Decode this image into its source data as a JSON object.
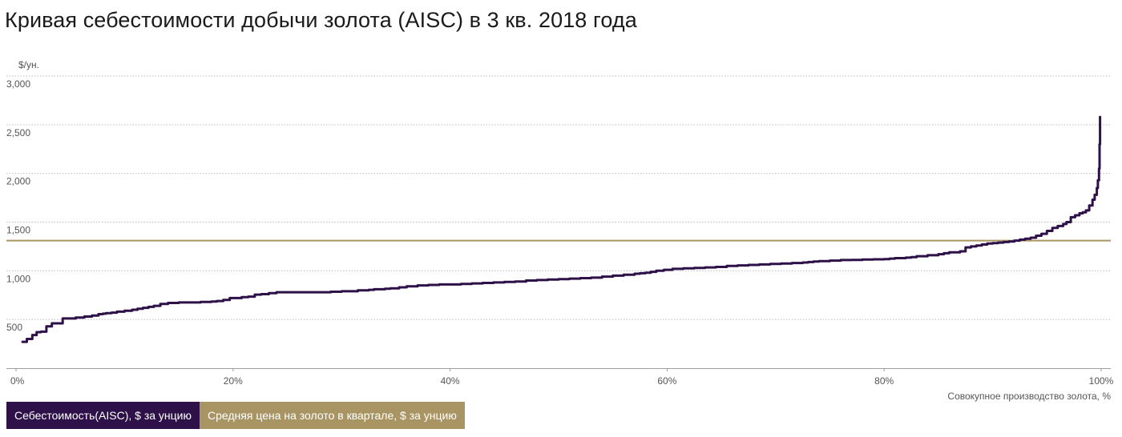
{
  "title": "Кривая себестоимости добычи золота (AISC) в 3 кв. 2018 года",
  "colors": {
    "cost": "#2d1148",
    "price": "#a99463",
    "grid": "#bdbdbd"
  },
  "legend": [
    {
      "label": "Себестоимость(AISC), $ за унцию",
      "color": "#2d1148"
    },
    {
      "label": "Средняя цена на золото в квартале, $ за унцию",
      "color": "#a99463"
    }
  ],
  "chart_data": {
    "type": "line",
    "ylabel": "$/ун.",
    "xlabel": "Совокупное производство золота, %",
    "xlim": [
      0,
      100
    ],
    "ylim": [
      0,
      3000
    ],
    "yticks": [
      500,
      1000,
      1500,
      2000,
      2500,
      3000
    ],
    "ytick_labels": [
      "500",
      "1,000",
      "1,500",
      "2,000",
      "2,500",
      "3,000"
    ],
    "xticks": [
      0,
      20,
      40,
      60,
      80,
      100
    ],
    "xtick_labels": [
      "0%",
      "20%",
      "40%",
      "60%",
      "80%",
      "100%"
    ],
    "grid": true,
    "series": [
      {
        "name": "Себестоимость(AISC), $ за унцию",
        "x": [
          0.6,
          1.0,
          1.5,
          1.9,
          2.3,
          2.8,
          3.3,
          4.3,
          5.5,
          6.3,
          7.0,
          7.6,
          8.0,
          8.3,
          8.8,
          9.3,
          10.0,
          10.7,
          11.2,
          11.7,
          12.2,
          12.7,
          13.3,
          14.0,
          15.0,
          16.0,
          17.0,
          18.0,
          18.5,
          19.1,
          19.7,
          20.3,
          20.8,
          21.4,
          22.0,
          22.6,
          23.3,
          24.0,
          24.6,
          25.2,
          26.0,
          28.0,
          29.0,
          30.0,
          31.5,
          32.5,
          33.0,
          34.0,
          34.5,
          35.3,
          36.0,
          37.0,
          38.0,
          39.0,
          40.0,
          41.0,
          42.0,
          43.0,
          44.0,
          45.0,
          46.0,
          47.0,
          48.0,
          49.0,
          50.0,
          51.0,
          52.0,
          53.0,
          54.0,
          55.0,
          56.0,
          57.0,
          57.5,
          58.0,
          58.5,
          59.0,
          59.7,
          60.5,
          61.5,
          62.5,
          63.5,
          64.5,
          65.5,
          66.5,
          67.5,
          68.5,
          69.5,
          70.5,
          71.5,
          72.5,
          73.0,
          73.5,
          74.0,
          75.0,
          76.0,
          77.0,
          78.0,
          79.0,
          80.0,
          80.5,
          81.0,
          82.0,
          82.5,
          83.0,
          84.0,
          85.0,
          85.5,
          86.0,
          86.5,
          87.0,
          87.5,
          88.0,
          88.5,
          89.0,
          89.5,
          90.0,
          90.5,
          91.0,
          91.5,
          92.0,
          92.5,
          93.0,
          93.5,
          94.0,
          94.5,
          95.0,
          95.5,
          96.0,
          96.5,
          96.8,
          97.2,
          97.6,
          98.0,
          98.3,
          98.6,
          98.9,
          99.2,
          99.4,
          99.6,
          99.7,
          99.8,
          99.85,
          99.9
        ],
        "y": [
          270,
          300,
          340,
          370,
          375,
          430,
          460,
          510,
          520,
          530,
          540,
          555,
          560,
          565,
          570,
          580,
          590,
          600,
          610,
          620,
          630,
          640,
          660,
          670,
          675,
          675,
          680,
          685,
          690,
          700,
          720,
          720,
          730,
          735,
          755,
          760,
          770,
          780,
          780,
          780,
          780,
          780,
          785,
          790,
          800,
          805,
          810,
          815,
          820,
          830,
          840,
          850,
          855,
          860,
          860,
          865,
          870,
          875,
          880,
          885,
          890,
          900,
          905,
          910,
          915,
          920,
          925,
          930,
          940,
          950,
          960,
          970,
          975,
          980,
          990,
          1000,
          1010,
          1020,
          1025,
          1030,
          1035,
          1040,
          1050,
          1055,
          1060,
          1065,
          1070,
          1075,
          1080,
          1085,
          1090,
          1095,
          1100,
          1105,
          1110,
          1112,
          1115,
          1118,
          1120,
          1125,
          1130,
          1135,
          1140,
          1150,
          1160,
          1170,
          1180,
          1190,
          1190,
          1200,
          1240,
          1250,
          1260,
          1270,
          1280,
          1285,
          1290,
          1295,
          1300,
          1310,
          1320,
          1330,
          1340,
          1360,
          1380,
          1410,
          1440,
          1460,
          1480,
          1500,
          1550,
          1570,
          1590,
          1600,
          1620,
          1670,
          1730,
          1780,
          1850,
          1930,
          2050,
          2300,
          2580
        ]
      },
      {
        "name": "Средняя цена на золото в квартале, $ за унцию",
        "x": [
          0,
          100
        ],
        "y": [
          1310,
          1310
        ]
      }
    ]
  }
}
